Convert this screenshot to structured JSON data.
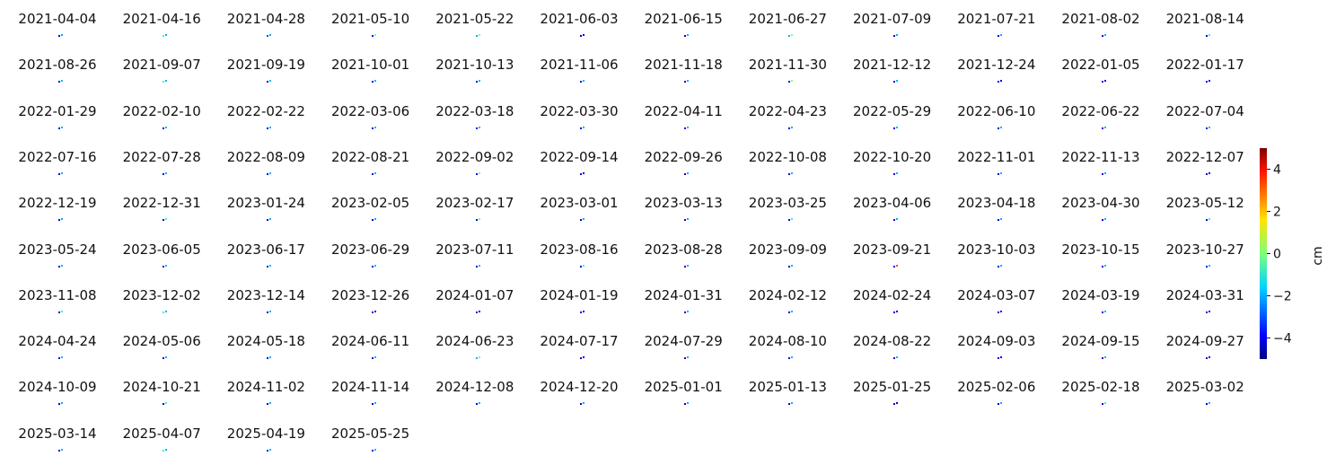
{
  "chart_data": {
    "type": "heatmap",
    "layout": "small-multiples grid",
    "panels": [
      "2021-04-04",
      "2021-04-16",
      "2021-04-28",
      "2021-05-10",
      "2021-05-22",
      "2021-06-03",
      "2021-06-15",
      "2021-06-27",
      "2021-07-09",
      "2021-07-21",
      "2021-08-02",
      "2021-08-14",
      "2021-08-26",
      "2021-09-07",
      "2021-09-19",
      "2021-10-01",
      "2021-10-13",
      "2021-11-06",
      "2021-11-18",
      "2021-11-30",
      "2021-12-12",
      "2021-12-24",
      "2022-01-05",
      "2022-01-17",
      "2022-01-29",
      "2022-02-10",
      "2022-02-22",
      "2022-03-06",
      "2022-03-18",
      "2022-03-30",
      "2022-04-11",
      "2022-04-23",
      "2022-05-29",
      "2022-06-10",
      "2022-06-22",
      "2022-07-04",
      "2022-07-16",
      "2022-07-28",
      "2022-08-09",
      "2022-08-21",
      "2022-09-02",
      "2022-09-14",
      "2022-09-26",
      "2022-10-08",
      "2022-10-20",
      "2022-11-01",
      "2022-11-13",
      "2022-12-07",
      "2022-12-19",
      "2022-12-31",
      "2023-01-24",
      "2023-02-05",
      "2023-02-17",
      "2023-03-01",
      "2023-03-13",
      "2023-03-25",
      "2023-04-06",
      "2023-04-18",
      "2023-04-30",
      "2023-05-12",
      "2023-05-24",
      "2023-06-05",
      "2023-06-17",
      "2023-06-29",
      "2023-07-11",
      "2023-08-16",
      "2023-08-28",
      "2023-09-09",
      "2023-09-21",
      "2023-10-03",
      "2023-10-15",
      "2023-10-27",
      "2023-11-08",
      "2023-12-02",
      "2023-12-14",
      "2023-12-26",
      "2024-01-07",
      "2024-01-19",
      "2024-01-31",
      "2024-02-12",
      "2024-02-24",
      "2024-03-07",
      "2024-03-19",
      "2024-03-31",
      "2024-04-24",
      "2024-05-06",
      "2024-05-18",
      "2024-06-11",
      "2024-06-23",
      "2024-07-17",
      "2024-07-29",
      "2024-08-10",
      "2024-08-22",
      "2024-09-03",
      "2024-09-15",
      "2024-09-27",
      "2024-10-09",
      "2024-10-21",
      "2024-11-02",
      "2024-11-14",
      "2024-12-08",
      "2024-12-20",
      "2025-01-01",
      "2025-01-13",
      "2025-01-25",
      "2025-02-06",
      "2025-02-18",
      "2025-03-02",
      "2025-03-14",
      "2025-04-07",
      "2025-04-19",
      "2025-05-25"
    ],
    "values": [
      [
        -4,
        -2
      ],
      [
        -1,
        -2
      ],
      [
        -3,
        -2
      ],
      [
        -4,
        0
      ],
      [
        -2,
        0
      ],
      [
        -4,
        -4
      ],
      [
        -4,
        -2
      ],
      [
        -2,
        0
      ],
      [
        -4,
        -2
      ],
      [
        -4,
        -2
      ],
      [
        -4,
        -2
      ],
      [
        -4,
        -1
      ],
      [
        -4,
        -2
      ],
      [
        -1,
        -2
      ],
      [
        -4,
        -2
      ],
      [
        -4,
        -2
      ],
      [
        -4,
        -2
      ],
      [
        -4,
        -2
      ],
      [
        -4,
        -2
      ],
      [
        -4,
        0
      ],
      [
        -4,
        -2
      ],
      [
        -4,
        -4
      ],
      [
        -4,
        -4
      ],
      [
        -4,
        -4
      ],
      [
        -4,
        -2
      ],
      [
        -4,
        -2
      ],
      [
        -4,
        -2
      ],
      [
        -4,
        -2
      ],
      [
        -4,
        -2
      ],
      [
        -4,
        -2
      ],
      [
        -4,
        -2
      ],
      [
        -4,
        -2
      ],
      [
        -4,
        -2
      ],
      [
        -4,
        -2
      ],
      [
        -4,
        -2
      ],
      [
        -4,
        -2
      ],
      [
        -4,
        -2
      ],
      [
        -4,
        -2
      ],
      [
        -4,
        -2
      ],
      [
        -4,
        -2
      ],
      [
        -4,
        0
      ],
      [
        -4,
        -4
      ],
      [
        -4,
        -2
      ],
      [
        -4,
        -2
      ],
      [
        -4,
        -2
      ],
      [
        -4,
        -2
      ],
      [
        -4,
        -2
      ],
      [
        -4,
        -4
      ],
      [
        -4,
        -2
      ],
      [
        -4,
        -1
      ],
      [
        -4,
        -2
      ],
      [
        -4,
        -2
      ],
      [
        -4,
        0
      ],
      [
        -4,
        -2
      ],
      [
        -4,
        -2
      ],
      [
        -4,
        -1
      ],
      [
        -4,
        -2
      ],
      [
        -4,
        -2
      ],
      [
        -4,
        -2
      ],
      [
        -4,
        -1
      ],
      [
        -4,
        -2
      ],
      [
        -4,
        -2
      ],
      [
        -4,
        -2
      ],
      [
        -4,
        -2
      ],
      [
        -4,
        -2
      ],
      [
        -4,
        -1
      ],
      [
        -4,
        -2
      ],
      [
        -4,
        -2
      ],
      [
        -4,
        3
      ],
      [
        -4,
        -2
      ],
      [
        -4,
        -2
      ],
      [
        -4,
        -2
      ],
      [
        -4,
        -1
      ],
      [
        -1,
        -2
      ],
      [
        -4,
        -2
      ],
      [
        -4,
        -4
      ],
      [
        -4,
        -4
      ],
      [
        -4,
        -4
      ],
      [
        -4,
        -2
      ],
      [
        -4,
        -2
      ],
      [
        -4,
        -4
      ],
      [
        -4,
        -4
      ],
      [
        -4,
        -2
      ],
      [
        -4,
        -4
      ],
      [
        -4,
        -2
      ],
      [
        -4,
        -2
      ],
      [
        -4,
        -2
      ],
      [
        -4,
        -2
      ],
      [
        -2,
        0
      ],
      [
        -4,
        -4
      ],
      [
        -4,
        -2
      ],
      [
        -4,
        -2
      ],
      [
        -4,
        -2
      ],
      [
        -4,
        -4
      ],
      [
        -4,
        -2
      ],
      [
        -4,
        -4
      ],
      [
        -4,
        -2
      ],
      [
        -4,
        -1
      ],
      [
        -4,
        -2
      ],
      [
        -4,
        -2
      ],
      [
        -4,
        -2
      ],
      [
        -4,
        -2
      ],
      [
        -4,
        -2
      ],
      [
        -4,
        -2
      ],
      [
        -4,
        -4
      ],
      [
        -4,
        -2
      ],
      [
        -4,
        -1
      ],
      [
        -4,
        -2
      ],
      [
        -4,
        -2
      ],
      [
        -1,
        -2
      ],
      [
        -4,
        -2
      ],
      [
        -4,
        -2
      ]
    ],
    "colormap": "jet",
    "vmin": -5,
    "vmax": 5,
    "colorbar_label": "cm",
    "colorbar_ticks": [
      "4",
      "2",
      "0",
      "−2",
      "−4"
    ],
    "colorbar_tick_values": [
      4,
      2,
      0,
      -2,
      -4
    ],
    "axes": "off",
    "grid": false
  }
}
